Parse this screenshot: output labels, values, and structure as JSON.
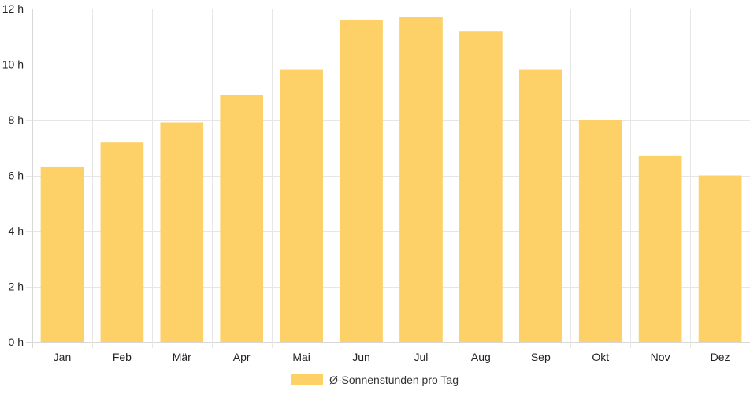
{
  "chart_data": {
    "type": "bar",
    "categories": [
      "Jan",
      "Feb",
      "Mär",
      "Apr",
      "Mai",
      "Jun",
      "Jul",
      "Aug",
      "Sep",
      "Okt",
      "Nov",
      "Dez"
    ],
    "series": [
      {
        "name": "Ø-Sonnenstunden pro Tag",
        "values": [
          6.3,
          7.2,
          7.9,
          8.9,
          9.8,
          11.6,
          11.7,
          11.2,
          9.8,
          8.0,
          6.7,
          6.0
        ]
      }
    ],
    "ylim": [
      0,
      12
    ],
    "yticks": [
      0,
      2,
      4,
      6,
      8,
      10,
      12
    ],
    "ytick_labels": [
      "0 h",
      "2 h",
      "4 h",
      "6 h",
      "8 h",
      "10 h",
      "12 h"
    ],
    "grid": true,
    "legend_position": "bottom",
    "colors": {
      "bar": "#fdd068",
      "grid": "#e6e6e6"
    }
  }
}
